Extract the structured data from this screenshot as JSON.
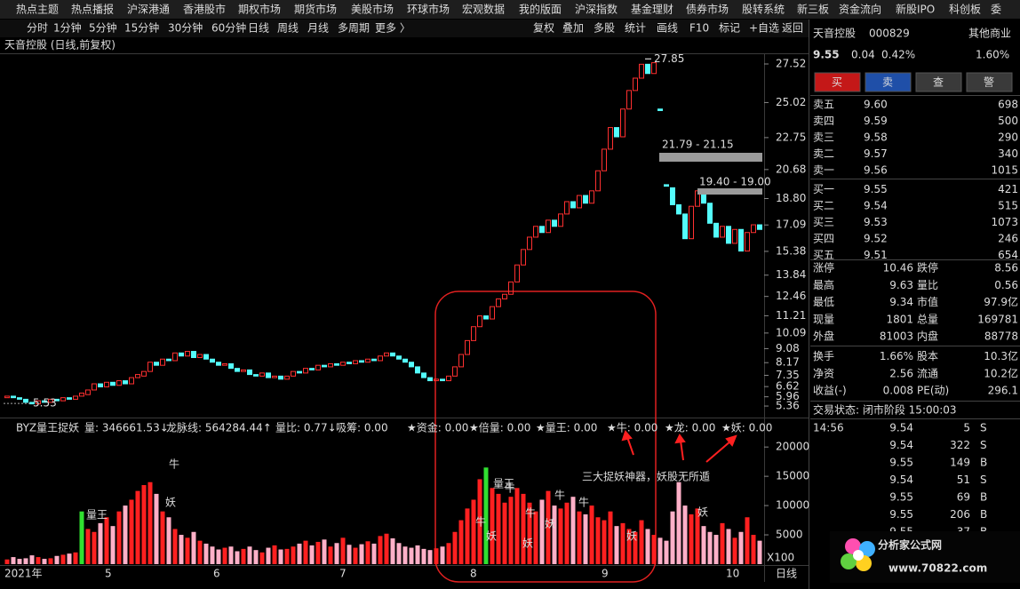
{
  "menu": [
    "热点主题",
    "热点播报",
    "沪深港通",
    "香港股市",
    "期权市场",
    "期货市场",
    "美股市场",
    "环球市场",
    "宏观数据",
    "我的版面",
    "沪深指数",
    "基金理财",
    "债券市场",
    "股转系统",
    "新三板",
    "资金流向",
    "新股IPO",
    "科创板",
    "委"
  ],
  "toolbar_left": [
    "分时",
    "1分钟",
    "5分钟",
    "15分钟",
    "30分钟",
    "60分钟",
    "日线",
    "周线",
    "月线",
    "多周期",
    "更多 〉"
  ],
  "toolbar_right": [
    "复权",
    "叠加",
    "多股",
    "统计",
    "画线",
    "F10",
    "标记",
    "+自选",
    "返回"
  ],
  "chart_title": "天音控股 (日线,前复权)",
  "price_chart": {
    "type": "candlestick",
    "ylim": [
      4.73,
      28.21
    ],
    "yticks": [
      27.52,
      25.02,
      22.75,
      20.68,
      {
        "value": 18.8,
        "label": "18.80"
      },
      17.09,
      15.38,
      13.84,
      12.46,
      11.21,
      10.09,
      9.08,
      8.17,
      7.35,
      6.62,
      5.96,
      5.36
    ],
    "up_color": "#ff3030",
    "down_color": "#54fcfc",
    "candles": [
      [
        5.9,
        6.0
      ],
      [
        6.0,
        5.9
      ],
      [
        5.9,
        5.8
      ],
      [
        5.8,
        5.6
      ],
      [
        5.6,
        5.5
      ],
      [
        5.5,
        5.7
      ],
      [
        5.7,
        5.6
      ],
      [
        5.6,
        5.8
      ],
      [
        5.8,
        5.7
      ],
      [
        5.7,
        5.9
      ],
      [
        5.9,
        5.8
      ],
      [
        5.8,
        6.0
      ],
      [
        6.0,
        6.2
      ],
      [
        6.1,
        6.4
      ],
      [
        6.4,
        6.8
      ],
      [
        6.8,
        6.6
      ],
      [
        6.6,
        6.9
      ],
      [
        6.9,
        6.7
      ],
      [
        6.7,
        7.0
      ],
      [
        7.0,
        6.8
      ],
      [
        6.8,
        7.2
      ],
      [
        7.2,
        7.4
      ],
      [
        7.3,
        7.6
      ],
      [
        7.6,
        8.2
      ],
      [
        8.2,
        8.0
      ],
      [
        8.0,
        8.4
      ],
      [
        8.4,
        8.3
      ],
      [
        8.3,
        8.8
      ],
      [
        8.8,
        8.6
      ],
      [
        8.6,
        8.9
      ],
      [
        8.9,
        8.5
      ],
      [
        8.5,
        8.7
      ],
      [
        8.7,
        8.4
      ],
      [
        8.4,
        8.2
      ],
      [
        8.2,
        8.0
      ],
      [
        8.0,
        8.1
      ],
      [
        8.1,
        7.8
      ],
      [
        7.8,
        7.6
      ],
      [
        7.6,
        7.7
      ],
      [
        7.7,
        7.4
      ],
      [
        7.4,
        7.3
      ],
      [
        7.3,
        7.5
      ],
      [
        7.5,
        7.2
      ],
      [
        7.2,
        7.3
      ],
      [
        7.3,
        7.1
      ],
      [
        7.1,
        7.3
      ],
      [
        7.3,
        7.6
      ],
      [
        7.6,
        7.5
      ],
      [
        7.5,
        7.8
      ],
      [
        7.8,
        7.7
      ],
      [
        7.7,
        8.0
      ],
      [
        8.0,
        7.9
      ],
      [
        7.9,
        8.1
      ],
      [
        8.1,
        8.0
      ],
      [
        8.0,
        8.2
      ],
      [
        8.2,
        8.1
      ],
      [
        8.1,
        8.3
      ],
      [
        8.3,
        8.2
      ],
      [
        8.2,
        8.4
      ],
      [
        8.4,
        8.3
      ],
      [
        8.3,
        8.6
      ],
      [
        8.6,
        8.8
      ],
      [
        8.8,
        8.6
      ],
      [
        8.6,
        8.4
      ],
      [
        8.4,
        8.2
      ],
      [
        8.2,
        7.9
      ],
      [
        7.9,
        7.5
      ],
      [
        7.5,
        7.2
      ],
      [
        7.2,
        7.0
      ],
      [
        7.0,
        7.1
      ],
      [
        7.1,
        7.0
      ],
      [
        7.0,
        7.3
      ],
      [
        7.3,
        7.9
      ],
      [
        7.9,
        8.7
      ],
      [
        8.7,
        9.6
      ],
      [
        9.6,
        10.5
      ],
      [
        10.5,
        11.2
      ],
      [
        11.2,
        11.0
      ],
      [
        11.0,
        11.8
      ],
      [
        11.8,
        12.3
      ],
      [
        12.3,
        12.6
      ],
      [
        12.6,
        13.4
      ],
      [
        13.4,
        14.5
      ],
      [
        14.5,
        15.5
      ],
      [
        15.5,
        16.3
      ],
      [
        16.3,
        17.0
      ],
      [
        17.0,
        16.6
      ],
      [
        16.6,
        17.4
      ],
      [
        17.4,
        17.0
      ],
      [
        17.0,
        17.8
      ],
      [
        17.8,
        18.6
      ],
      [
        18.6,
        18.2
      ],
      [
        18.2,
        19.0
      ],
      [
        19.0,
        18.5
      ],
      [
        18.5,
        19.3
      ],
      [
        19.3,
        20.6
      ],
      [
        20.6,
        22.0
      ],
      [
        22.0,
        23.4
      ],
      [
        23.4,
        22.8
      ],
      [
        22.8,
        24.6
      ],
      [
        24.6,
        25.8
      ],
      [
        25.8,
        26.6
      ],
      [
        26.6,
        27.5
      ],
      [
        27.5,
        26.9
      ],
      [
        26.9,
        27.6
      ],
      [
        24.6,
        24.5
      ],
      [
        19.7,
        19.6
      ],
      [
        19.5,
        18.4
      ],
      [
        18.4,
        17.8
      ],
      [
        17.8,
        16.2
      ],
      [
        16.2,
        18.3
      ],
      [
        18.3,
        19.3
      ],
      [
        19.3,
        18.5
      ],
      [
        18.5,
        17.2
      ],
      [
        17.2,
        16.3
      ],
      [
        16.3,
        17.0
      ],
      [
        17.0,
        15.9
      ],
      [
        15.9,
        16.8
      ],
      [
        16.8,
        15.4
      ],
      [
        15.4,
        16.6
      ],
      [
        16.6,
        17.1
      ],
      [
        17.1,
        16.8
      ]
    ],
    "peak_label": 27.85,
    "low_label": 5.53,
    "zones": [
      "21.79 - 21.15",
      "19.40 - 19.00"
    ]
  },
  "indicator": {
    "type": "bar",
    "ylim": [
      0,
      22000
    ],
    "yticks": [
      20000,
      15000,
      10000,
      5000
    ],
    "unit_label": "X100",
    "legend": [
      {
        "text": "BYZ量王捉妖",
        "color": "#dddddd"
      },
      {
        "text": "量: 346661.53↓",
        "color": "#ff4040"
      },
      {
        "text": "龙脉线: 564284.44↑",
        "color": "#6fc8ff"
      },
      {
        "text": "量比: 0.77↓",
        "color": "#6fc8ff"
      },
      {
        "text": "吸筹: 0.00",
        "color": "#ff8080"
      },
      {
        "text": "★资金: 0.00",
        "color": "#40c8c8"
      },
      {
        "text": "★倍量: 0.00",
        "color": "#ff40ff"
      },
      {
        "text": "★量王: 0.00",
        "color": "#40ff40"
      },
      {
        "text": "★牛: 0.00",
        "color": "#54fcfc"
      },
      {
        "text": "★龙: 0.00",
        "color": "#ffff40"
      },
      {
        "text": "★妖: 0.00",
        "color": "#ffff40"
      }
    ],
    "up_color": "#ff2020",
    "down_color": "#ffb0c8",
    "values": [
      800,
      1200,
      900,
      1000,
      1500,
      1200,
      900,
      1000,
      1400,
      1600,
      1800,
      2000,
      9000,
      6000,
      5500,
      7000,
      8000,
      6500,
      9000,
      10000,
      11000,
      12500,
      13500,
      14000,
      12000,
      9000,
      8000,
      6000,
      5000,
      4500,
      5500,
      4000,
      3500,
      3000,
      2500,
      2800,
      3000,
      2200,
      2600,
      3000,
      2400,
      2000,
      2800,
      3200,
      2500,
      2600,
      3000,
      3500,
      4000,
      3200,
      3800,
      4200,
      3000,
      3600,
      4500,
      3300,
      2800,
      3400,
      3900,
      3500,
      4800,
      5200,
      4400,
      3600,
      3000,
      2800,
      3200,
      2600,
      2400,
      2700,
      3000,
      3600,
      5500,
      7500,
      9500,
      11000,
      14500,
      16500,
      13000,
      12000,
      10500,
      11500,
      13000,
      12000,
      10500,
      9000,
      11000,
      12500,
      10000,
      9500,
      10500,
      11500,
      9000,
      8500,
      10000,
      8000,
      7500,
      9000,
      6500,
      7000,
      6000,
      5500,
      7500,
      6000,
      5000,
      4500,
      4000,
      9000,
      14000,
      10000,
      8500,
      9500,
      6500,
      5500,
      5000,
      7000,
      6000,
      4500,
      5500,
      8000,
      5000,
      4000
    ],
    "signals": [
      {
        "text": "量王",
        "color": "#40ff40"
      },
      {
        "text": "牛",
        "color": "#54fcfc"
      },
      {
        "text": "妖",
        "color": "#ffff40"
      },
      {
        "text": "量王",
        "color": "#40ff40"
      },
      {
        "text": "牛",
        "color": "#54fcfc"
      },
      {
        "text": "妖",
        "color": "#ffff40"
      },
      {
        "text": "牛",
        "color": "#54fcfc"
      },
      {
        "text": "妖",
        "color": "#ffff40"
      },
      {
        "text": "牛",
        "color": "#54fcfc"
      },
      {
        "text": "牛",
        "color": "#54fcfc"
      },
      {
        "text": "妖",
        "color": "#ffff40"
      },
      {
        "text": "牛",
        "color": "#54fcfc"
      },
      {
        "text": "妖",
        "color": "#ffff40"
      },
      {
        "text": "妖",
        "color": "#ffff40"
      }
    ],
    "annotation": "三大捉妖神器，妖股无所遁"
  },
  "x_axis": [
    "2021年",
    "5",
    "6",
    "7",
    "8",
    "9",
    "10"
  ],
  "period_label": "日线",
  "quote": {
    "name": "天音控股",
    "code": "000829",
    "industry": "其他商业",
    "price": "9.55",
    "change": "0.04",
    "pct": "0.42%",
    "amp": "1.60%",
    "buttons": [
      "买",
      "卖",
      "查",
      "警"
    ],
    "book": [
      [
        "卖五",
        "9.60",
        "698"
      ],
      [
        "卖四",
        "9.59",
        "500"
      ],
      [
        "卖三",
        "9.58",
        "290"
      ],
      [
        "卖二",
        "9.57",
        "340"
      ],
      [
        "卖一",
        "9.56",
        "1015"
      ],
      [
        "买一",
        "9.55",
        "421"
      ],
      [
        "买二",
        "9.54",
        "515"
      ],
      [
        "买三",
        "9.53",
        "1073"
      ],
      [
        "买四",
        "9.52",
        "246"
      ],
      [
        "买五",
        "9.51",
        "654"
      ]
    ],
    "stats": [
      [
        {
          "label": "涨停",
          "value": "10.46",
          "color": "#ff4040"
        },
        {
          "label": "跌停",
          "value": "8.56",
          "color": "#40d040"
        }
      ],
      [
        {
          "label": "最高",
          "value": "9.63",
          "color": "#ff4040"
        },
        {
          "label": "量比",
          "value": "0.56",
          "color": "#40d040"
        }
      ],
      [
        {
          "label": "最低",
          "value": "9.34",
          "color": "#40d040"
        },
        {
          "label": "市值",
          "value": "97.9亿",
          "color": "#dddddd"
        }
      ],
      [
        {
          "label": "现量",
          "value": "1801",
          "color": "#e040e0"
        },
        {
          "label": "总量",
          "value": "169781",
          "color": "#dddddd"
        }
      ],
      [
        {
          "label": "外盘",
          "value": "81003",
          "color": "#ff4040"
        },
        {
          "label": "内盘",
          "value": "88778",
          "color": "#40d040"
        }
      ],
      [
        {
          "label": "换手",
          "value": "1.66%",
          "color": "#dddddd"
        },
        {
          "label": "股本",
          "value": "10.3亿",
          "color": "#dddddd"
        }
      ],
      [
        {
          "label": "净资",
          "value": "2.56",
          "color": "#dddddd"
        },
        {
          "label": "流通",
          "value": "10.2亿",
          "color": "#dddddd"
        }
      ],
      [
        {
          "label": "收益(-)",
          "value": "0.008",
          "color": "#dddddd"
        },
        {
          "label": "PE(动)",
          "value": "296.1",
          "color": "#dddddd"
        }
      ]
    ],
    "status": "交易状态: 闭市阶段 15:00:03",
    "trades": [
      {
        "time": "14:56",
        "price": "9.54",
        "vol": "5",
        "side": "S"
      },
      {
        "price": "9.54",
        "vol": "322",
        "side": "S"
      },
      {
        "price": "9.55",
        "vol": "149",
        "side": "B"
      },
      {
        "price": "9.54",
        "vol": "51",
        "side": "S"
      },
      {
        "price": "9.55",
        "vol": "69",
        "side": "B"
      },
      {
        "price": "9.55",
        "vol": "206",
        "side": "B"
      },
      {
        "price": "9.55",
        "vol": "37",
        "side": "B"
      }
    ]
  },
  "watermark": {
    "title": "分析家公式网",
    "url": "www.70822.com"
  }
}
